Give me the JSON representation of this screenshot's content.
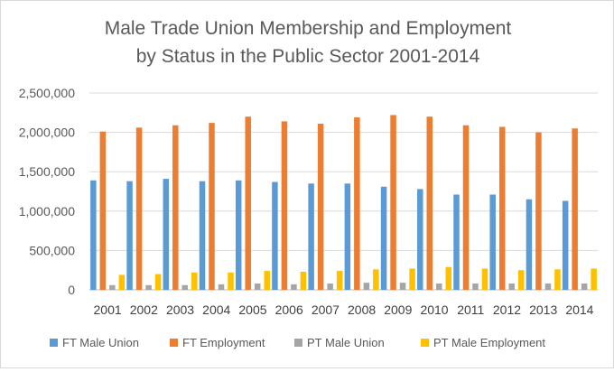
{
  "chart_data": {
    "type": "bar",
    "title": "Male Trade Union Membership and Employment by Status in the Public Sector 2001-2014",
    "title_lines": [
      "Male Trade Union Membership and Employment",
      "by Status in the Public Sector 2001-2014"
    ],
    "xlabel": "",
    "ylabel": "",
    "ylim": [
      0,
      2500000
    ],
    "yticks": [
      0,
      500000,
      1000000,
      1500000,
      2000000,
      2500000
    ],
    "ytick_labels": [
      "0",
      "500,000",
      "1,000,000",
      "1,500,000",
      "2,000,000",
      "2,500,000"
    ],
    "grid": true,
    "legend_position": "bottom",
    "categories": [
      "2001",
      "2002",
      "2003",
      "2004",
      "2005",
      "2006",
      "2007",
      "2008",
      "2009",
      "2010",
      "2011",
      "2012",
      "2013",
      "2014"
    ],
    "series": [
      {
        "name": "FT Male Union",
        "color": "#5b9bd5",
        "values": [
          1390000,
          1380000,
          1410000,
          1380000,
          1390000,
          1370000,
          1350000,
          1350000,
          1310000,
          1280000,
          1210000,
          1210000,
          1150000,
          1130000
        ]
      },
      {
        "name": "FT Employment",
        "color": "#ed7d31",
        "values": [
          2010000,
          2060000,
          2090000,
          2120000,
          2200000,
          2140000,
          2110000,
          2190000,
          2220000,
          2200000,
          2090000,
          2070000,
          2000000,
          2050000
        ]
      },
      {
        "name": "PT Male Union",
        "color": "#a5a5a5",
        "values": [
          60000,
          60000,
          60000,
          70000,
          80000,
          70000,
          80000,
          90000,
          90000,
          80000,
          80000,
          80000,
          80000,
          80000
        ]
      },
      {
        "name": "PT Male Employment",
        "color": "#ffc000",
        "values": [
          190000,
          200000,
          220000,
          220000,
          240000,
          230000,
          240000,
          260000,
          270000,
          290000,
          270000,
          250000,
          260000,
          270000
        ]
      }
    ]
  }
}
